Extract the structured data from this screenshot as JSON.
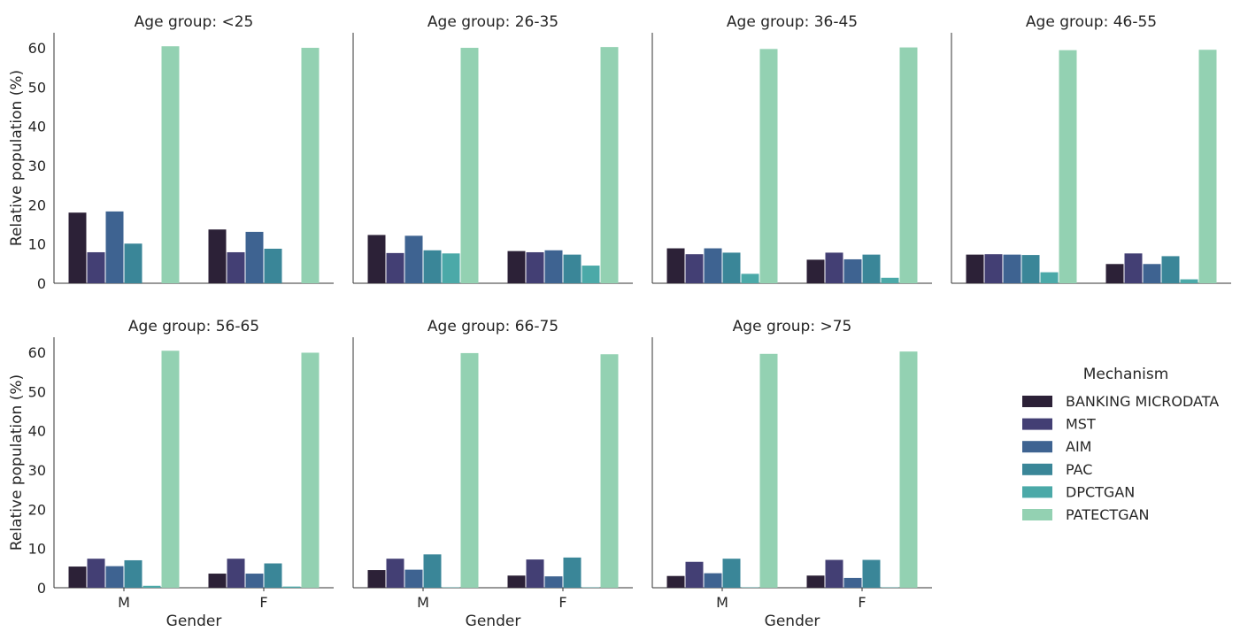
{
  "chart_data": {
    "type": "bar",
    "layout": "faceted grid, 2 rows x 4 columns, shared y-axis",
    "ylabel": "Relative population (%)",
    "xlabel": "Gender",
    "ylim": [
      0,
      63
    ],
    "yticks": [
      0,
      10,
      20,
      30,
      40,
      50,
      60
    ],
    "categories": [
      "M",
      "F"
    ],
    "grid": false,
    "legend": {
      "title": "Mechanism",
      "placement": "bottom-right",
      "entries": [
        "BANKING MICRODATA",
        "MST",
        "AIM",
        "PAC",
        "DPCTGAN",
        "PATECTGAN"
      ]
    },
    "series_colors": {
      "BANKING MICRODATA": "#2c2137",
      "MST": "#433f74",
      "AIM": "#3e6391",
      "PAC": "#3a8698",
      "DPCTGAN": "#4ba9a8",
      "PATECTGAN": "#93d1b2"
    },
    "facets": [
      {
        "title": "Age group: <25",
        "series": [
          {
            "name": "BANKING MICRODATA",
            "values": [
              18.0,
              13.7
            ]
          },
          {
            "name": "MST",
            "values": [
              7.9,
              7.9
            ]
          },
          {
            "name": "AIM",
            "values": [
              18.3,
              13.1
            ]
          },
          {
            "name": "PAC",
            "values": [
              10.1,
              8.8
            ]
          },
          {
            "name": "DPCTGAN",
            "values": [
              0.0,
              0.0
            ]
          },
          {
            "name": "PATECTGAN",
            "values": [
              60.4,
              60.0
            ]
          }
        ]
      },
      {
        "title": "Age group: 26-35",
        "series": [
          {
            "name": "BANKING MICRODATA",
            "values": [
              12.3,
              8.2
            ]
          },
          {
            "name": "MST",
            "values": [
              7.7,
              7.9
            ]
          },
          {
            "name": "AIM",
            "values": [
              12.1,
              8.4
            ]
          },
          {
            "name": "PAC",
            "values": [
              8.4,
              7.3
            ]
          },
          {
            "name": "DPCTGAN",
            "values": [
              7.6,
              4.5
            ]
          },
          {
            "name": "PATECTGAN",
            "values": [
              60.0,
              60.2
            ]
          }
        ]
      },
      {
        "title": "Age group: 36-45",
        "series": [
          {
            "name": "BANKING MICRODATA",
            "values": [
              8.9,
              6.0
            ]
          },
          {
            "name": "MST",
            "values": [
              7.4,
              7.8
            ]
          },
          {
            "name": "AIM",
            "values": [
              8.9,
              6.1
            ]
          },
          {
            "name": "PAC",
            "values": [
              7.8,
              7.3
            ]
          },
          {
            "name": "DPCTGAN",
            "values": [
              2.4,
              1.4
            ]
          },
          {
            "name": "PATECTGAN",
            "values": [
              59.7,
              60.1
            ]
          }
        ]
      },
      {
        "title": "Age group: 46-55",
        "series": [
          {
            "name": "BANKING MICRODATA",
            "values": [
              7.3,
              4.9
            ]
          },
          {
            "name": "MST",
            "values": [
              7.4,
              7.6
            ]
          },
          {
            "name": "AIM",
            "values": [
              7.3,
              4.9
            ]
          },
          {
            "name": "PAC",
            "values": [
              7.2,
              6.9
            ]
          },
          {
            "name": "DPCTGAN",
            "values": [
              2.8,
              1.0
            ]
          },
          {
            "name": "PATECTGAN",
            "values": [
              59.4,
              59.5
            ]
          }
        ]
      },
      {
        "title": "Age group: 56-65",
        "series": [
          {
            "name": "BANKING MICRODATA",
            "values": [
              5.4,
              3.6
            ]
          },
          {
            "name": "MST",
            "values": [
              7.4,
              7.4
            ]
          },
          {
            "name": "AIM",
            "values": [
              5.5,
              3.6
            ]
          },
          {
            "name": "PAC",
            "values": [
              7.0,
              6.2
            ]
          },
          {
            "name": "DPCTGAN",
            "values": [
              0.5,
              0.3
            ]
          },
          {
            "name": "PATECTGAN",
            "values": [
              60.4,
              59.9
            ]
          }
        ]
      },
      {
        "title": "Age group: 66-75",
        "series": [
          {
            "name": "BANKING MICRODATA",
            "values": [
              4.5,
              3.1
            ]
          },
          {
            "name": "MST",
            "values": [
              7.4,
              7.2
            ]
          },
          {
            "name": "AIM",
            "values": [
              4.6,
              2.9
            ]
          },
          {
            "name": "PAC",
            "values": [
              8.5,
              7.7
            ]
          },
          {
            "name": "DPCTGAN",
            "values": [
              0.1,
              0.1
            ]
          },
          {
            "name": "PATECTGAN",
            "values": [
              59.8,
              59.5
            ]
          }
        ]
      },
      {
        "title": "Age group: >75",
        "series": [
          {
            "name": "BANKING MICRODATA",
            "values": [
              3.0,
              3.1
            ]
          },
          {
            "name": "MST",
            "values": [
              6.6,
              7.1
            ]
          },
          {
            "name": "AIM",
            "values": [
              3.7,
              2.5
            ]
          },
          {
            "name": "PAC",
            "values": [
              7.4,
              7.1
            ]
          },
          {
            "name": "DPCTGAN",
            "values": [
              0.1,
              0.1
            ]
          },
          {
            "name": "PATECTGAN",
            "values": [
              59.6,
              60.2
            ]
          }
        ]
      }
    ]
  }
}
